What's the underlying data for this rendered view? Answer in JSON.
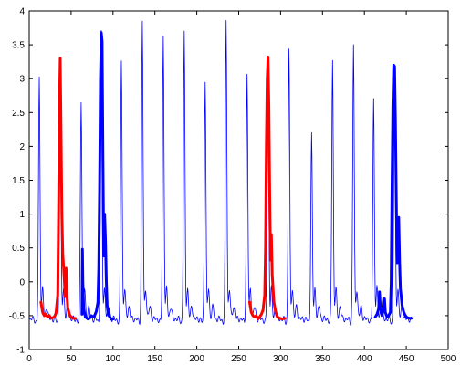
{
  "chart_data": {
    "type": "line",
    "title": "",
    "xlabel": "",
    "ylabel": "",
    "xlim": [
      0,
      500
    ],
    "ylim": [
      -1,
      4
    ],
    "xticks": [
      0,
      50,
      100,
      150,
      200,
      250,
      300,
      350,
      400,
      450,
      500
    ],
    "yticks": [
      -1,
      -0.5,
      0,
      0.5,
      1,
      1.5,
      2,
      2.5,
      3,
      3.5,
      4
    ],
    "xtick_labels": [
      "0",
      "50",
      "100",
      "150",
      "200",
      "250",
      "300",
      "350",
      "400",
      "450",
      "500"
    ],
    "ytick_labels": [
      "-1",
      "-0.5",
      "0",
      "0.5",
      "1",
      "1.5",
      "2",
      "2.5",
      "3",
      "3.5",
      "4"
    ],
    "grid": false,
    "legend": false,
    "series": [
      {
        "color": "#0000ff",
        "width": 0.8,
        "peaks": [
          [
            12,
            3.0
          ],
          [
            37,
            3.3
          ],
          [
            62,
            2.7
          ],
          [
            86,
            3.68
          ],
          [
            110,
            3.3
          ],
          [
            135,
            3.85
          ],
          [
            160,
            3.62
          ],
          [
            185,
            3.68
          ],
          [
            210,
            3.0
          ],
          [
            235,
            3.87
          ],
          [
            260,
            3.05
          ],
          [
            285,
            3.32
          ],
          [
            310,
            3.45
          ],
          [
            337,
            2.18
          ],
          [
            362,
            3.3
          ],
          [
            387,
            3.52
          ],
          [
            411,
            2.7
          ],
          [
            436,
            3.2
          ]
        ],
        "x_range": [
          0,
          456
        ],
        "baseline": -0.55
      },
      {
        "color": "#ff0000",
        "width": 3,
        "points": [
          [
            14,
            -0.3
          ],
          [
            16,
            -0.45
          ],
          [
            18,
            -0.5
          ],
          [
            20,
            -0.48
          ],
          [
            22,
            -0.52
          ],
          [
            24,
            -0.5
          ],
          [
            26,
            -0.54
          ],
          [
            28,
            -0.53
          ],
          [
            30,
            -0.52
          ],
          [
            32,
            -0.46
          ],
          [
            34,
            -0.2
          ],
          [
            35,
            1.0
          ],
          [
            36,
            2.6
          ],
          [
            37,
            3.3
          ],
          [
            38,
            2.2
          ],
          [
            39,
            1.0
          ],
          [
            40,
            0.42
          ],
          [
            41,
            0.22
          ],
          [
            42,
            0.0
          ],
          [
            43,
            -0.22
          ],
          [
            44,
            0.2
          ],
          [
            45,
            -0.2
          ],
          [
            46,
            -0.38
          ],
          [
            48,
            -0.48
          ],
          [
            50,
            -0.52
          ],
          [
            52,
            -0.54
          ],
          [
            55,
            -0.54
          ]
        ]
      },
      {
        "color": "#0000ff",
        "width": 3,
        "points": [
          [
            63,
            -0.48
          ],
          [
            63.5,
            0.48
          ],
          [
            64,
            0.0
          ],
          [
            65,
            -0.4
          ],
          [
            67,
            -0.52
          ],
          [
            70,
            -0.55
          ],
          [
            72,
            -0.54
          ],
          [
            74,
            -0.5
          ],
          [
            76,
            -0.52
          ],
          [
            78,
            -0.5
          ],
          [
            80,
            -0.44
          ],
          [
            82,
            -0.3
          ],
          [
            83,
            0.2
          ],
          [
            84,
            1.4
          ],
          [
            85,
            3.0
          ],
          [
            86,
            3.68
          ],
          [
            87,
            3.55
          ],
          [
            88,
            1.8
          ],
          [
            89,
            0.38
          ],
          [
            90,
            1.0
          ],
          [
            91,
            0.62
          ],
          [
            92,
            0.02
          ],
          [
            93,
            -0.35
          ],
          [
            95,
            -0.5
          ],
          [
            98,
            -0.55
          ],
          [
            100,
            -0.55
          ]
        ]
      },
      {
        "color": "#ff0000",
        "width": 3,
        "points": [
          [
            263,
            -0.3
          ],
          [
            265,
            -0.45
          ],
          [
            267,
            -0.5
          ],
          [
            269,
            -0.52
          ],
          [
            271,
            -0.5
          ],
          [
            273,
            -0.55
          ],
          [
            275,
            -0.52
          ],
          [
            277,
            -0.48
          ],
          [
            279,
            -0.42
          ],
          [
            281,
            -0.2
          ],
          [
            282,
            0.5
          ],
          [
            283,
            2.0
          ],
          [
            284,
            3.0
          ],
          [
            285,
            3.32
          ],
          [
            286,
            2.6
          ],
          [
            287,
            1.3
          ],
          [
            288,
            0.32
          ],
          [
            289,
            0.7
          ],
          [
            290,
            0.1
          ],
          [
            291,
            -0.1
          ],
          [
            292,
            -0.3
          ],
          [
            294,
            -0.44
          ],
          [
            296,
            -0.52
          ],
          [
            299,
            -0.54
          ],
          [
            302,
            -0.55
          ],
          [
            305,
            -0.54
          ]
        ]
      },
      {
        "color": "#0000ff",
        "width": 3,
        "points": [
          [
            413,
            -0.52
          ],
          [
            415,
            -0.48
          ],
          [
            417,
            -0.4
          ],
          [
            418,
            -0.15
          ],
          [
            419,
            -0.35
          ],
          [
            421,
            -0.5
          ],
          [
            423,
            -0.38
          ],
          [
            424,
            -0.25
          ],
          [
            425,
            -0.45
          ],
          [
            427,
            -0.52
          ],
          [
            429,
            -0.5
          ],
          [
            431,
            -0.45
          ],
          [
            432,
            0.0
          ],
          [
            433,
            1.4
          ],
          [
            434,
            2.6
          ],
          [
            435,
            3.2
          ],
          [
            436,
            3.18
          ],
          [
            437,
            2.4
          ],
          [
            438,
            1.3
          ],
          [
            439,
            0.28
          ],
          [
            440,
            0.58
          ],
          [
            441,
            0.95
          ],
          [
            442,
            0.3
          ],
          [
            443,
            -0.1
          ],
          [
            445,
            -0.35
          ],
          [
            447,
            -0.45
          ],
          [
            449,
            -0.5
          ],
          [
            451,
            -0.53
          ],
          [
            454,
            -0.54
          ],
          [
            456,
            -0.54
          ]
        ]
      }
    ]
  }
}
